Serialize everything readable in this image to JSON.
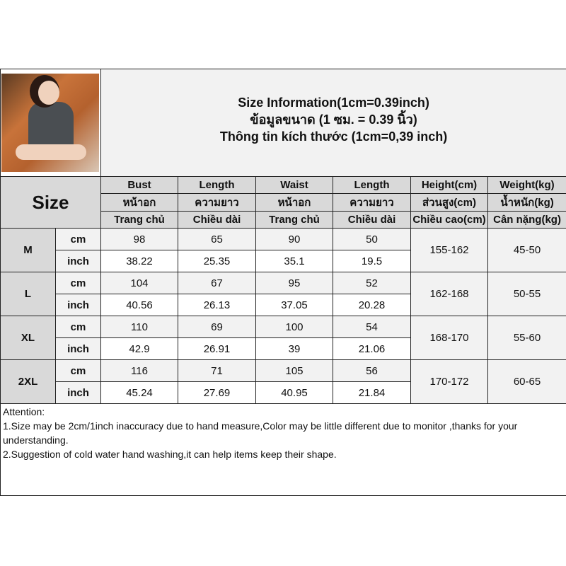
{
  "title": {
    "line1": "Size Information(1cm=0.39inch)",
    "line2": "ข้อมูลขนาด (1 ซม. = 0.39 นิ้ว)",
    "line3": "Thông tin kích thước (1cm=0,39 inch)"
  },
  "size_label": "Size",
  "columns": [
    {
      "en": "Bust",
      "th": "หน้าอก",
      "vi": "Trang chủ"
    },
    {
      "en": "Length",
      "th": "ความยาว",
      "vi": "Chiều dài"
    },
    {
      "en": "Waist",
      "th": "หน้าอก",
      "vi": "Trang chủ"
    },
    {
      "en": "Length",
      "th": "ความยาว",
      "vi": "Chiều dài"
    },
    {
      "en": "Height(cm)",
      "th": "ส่วนสูง(cm)",
      "vi": "Chiều cao(cm)"
    },
    {
      "en": "Weight(kg)",
      "th": "น้ำหนัก(kg)",
      "vi": "Cân nặng(kg)"
    }
  ],
  "unit_cm": "cm",
  "unit_inch": "inch",
  "rows": [
    {
      "size": "M",
      "cm": [
        "98",
        "65",
        "90",
        "50"
      ],
      "inch": [
        "38.22",
        "25.35",
        "35.1",
        "19.5"
      ],
      "height": "155-162",
      "weight": "45-50"
    },
    {
      "size": "L",
      "cm": [
        "104",
        "67",
        "95",
        "52"
      ],
      "inch": [
        "40.56",
        "26.13",
        "37.05",
        "20.28"
      ],
      "height": "162-168",
      "weight": "50-55"
    },
    {
      "size": "XL",
      "cm": [
        "110",
        "69",
        "100",
        "54"
      ],
      "inch": [
        "42.9",
        "26.91",
        "39",
        "21.06"
      ],
      "height": "168-170",
      "weight": "55-60"
    },
    {
      "size": "2XL",
      "cm": [
        "116",
        "71",
        "105",
        "56"
      ],
      "inch": [
        "45.24",
        "27.69",
        "40.95",
        "21.84"
      ],
      "height": "170-172",
      "weight": "60-65"
    }
  ],
  "attention": {
    "heading": "Attention:",
    "note1": "1.Size may be 2cm/1inch inaccuracy due to hand measure,Color may be little different due to monitor ,thanks for your understanding.",
    "note2": "2.Suggestion of cold water hand washing,it can help items keep their shape."
  }
}
